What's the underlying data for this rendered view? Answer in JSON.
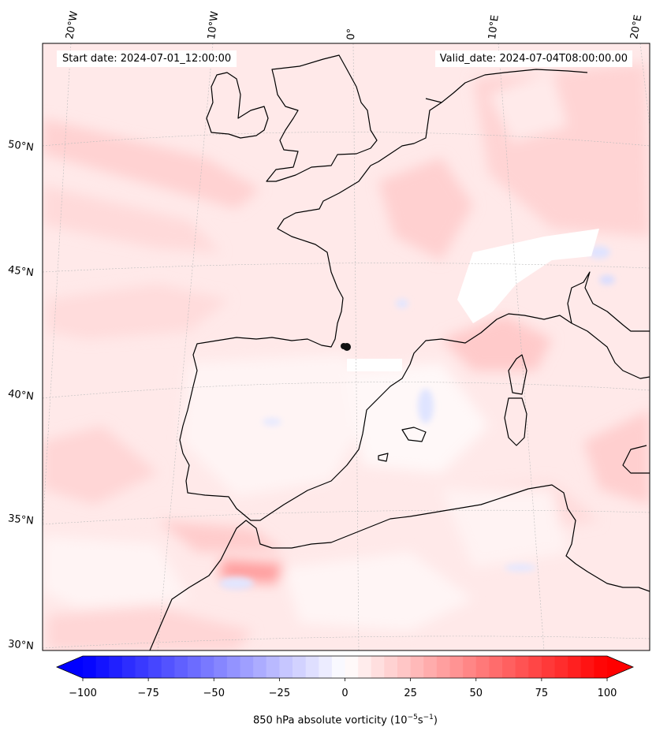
{
  "map": {
    "title_left_label": "Start date:",
    "start_date": "2024-07-01_12:00:00",
    "title_right_label": "Valid_date:",
    "valid_date": "2024-07-04T08:00:00.00",
    "lon_labels": [
      "20°W",
      "10°W",
      "0°",
      "10°E",
      "20°E"
    ],
    "lat_labels": [
      "50°N",
      "45°N",
      "40°N",
      "35°N",
      "30°N"
    ],
    "marker_label": "location-marker",
    "colors": {
      "negative_max": "#0000ff",
      "zero": "#ffffff",
      "positive_max": "#ff0000",
      "coastline": "#000000",
      "gridline": "#bbbbbb"
    }
  },
  "colorbar": {
    "label_text": "850 hPa absolute vorticity (10",
    "label_exp1": "−5",
    "label_mid": "s",
    "label_exp2": "−1",
    "label_end": ")",
    "min": -100,
    "max": 100,
    "levels": 40,
    "ticks": [
      "−100",
      "−75",
      "−50",
      "−25",
      "0",
      "25",
      "50",
      "75",
      "100"
    ],
    "extend": "both"
  }
}
